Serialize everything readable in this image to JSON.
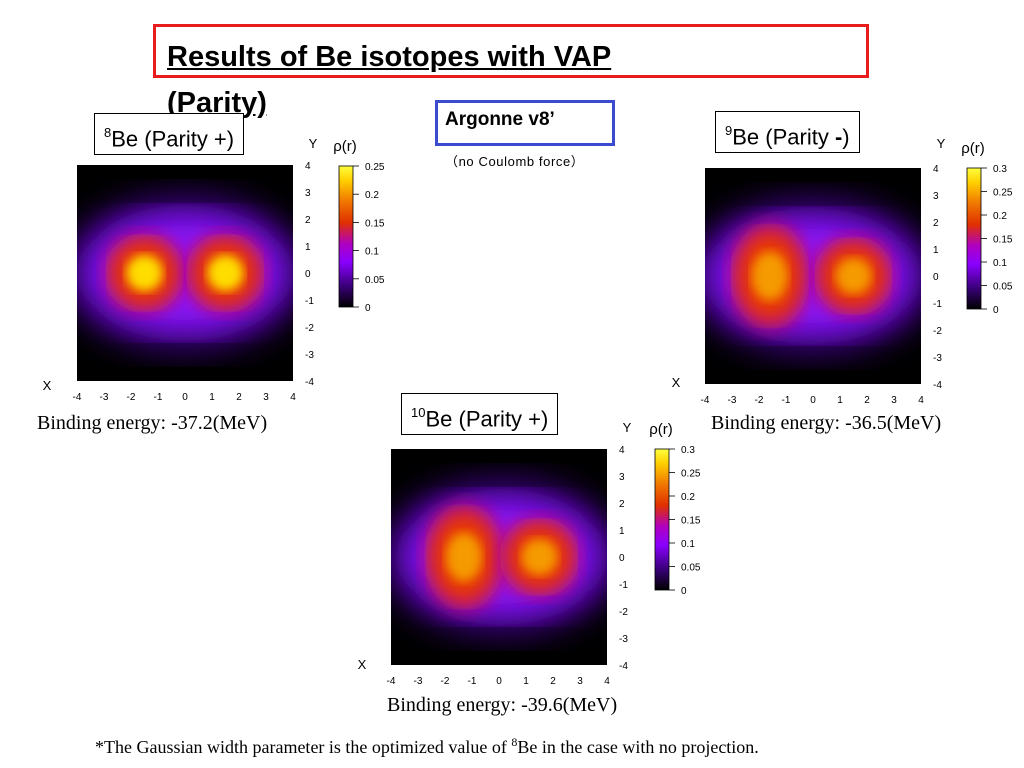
{
  "slide": {
    "title_line1": "Results of Be isotopes with VAP",
    "title_line2": "(Parity)",
    "potential": "Argonne v8’",
    "potential_note": "（no Coulomb force）",
    "footnote_before": "*The Gaussian width parameter is the optimized value of ",
    "footnote_sup": "8",
    "footnote_after": "Be in the case with no projection."
  },
  "panels": [
    {
      "mass": "8",
      "element": "Be (Parity +)",
      "parity_sign": "",
      "binding": "Binding energy: -37.2(MeV)",
      "x_axis_label": "X",
      "y_axis_label": "Y",
      "colorbar_label": "ρ(r)",
      "cb_ticks": [
        "0.25",
        "0.2",
        "0.15",
        "0.1",
        "0.05",
        "0"
      ]
    },
    {
      "mass": "9",
      "element": "Be (Parity ",
      "parity_sign": "-",
      "binding": "Binding energy: -36.5(MeV)",
      "x_axis_label": "X",
      "y_axis_label": "Y",
      "colorbar_label": "ρ(r)",
      "cb_ticks": [
        "0.3",
        "0.25",
        "0.2",
        "0.15",
        "0.1",
        "0.05",
        "0"
      ]
    },
    {
      "mass": "10",
      "element": "Be (Parity +)",
      "parity_sign": "",
      "binding": "Binding energy: -39.6(MeV)",
      "x_axis_label": "X",
      "y_axis_label": "Y",
      "colorbar_label": "ρ(r)",
      "cb_ticks": [
        "0.3",
        "0.25",
        "0.2",
        "0.15",
        "0.1",
        "0.05",
        "0"
      ]
    }
  ],
  "chart_data": [
    {
      "type": "heatmap",
      "title": "8Be (Parity +)",
      "xlabel": "X",
      "ylabel": "Y",
      "colorbar_label": "ρ(r)",
      "xlim": [
        -4,
        4
      ],
      "ylim": [
        -4,
        4
      ],
      "x_ticks": [
        "-4",
        "-3",
        "-2",
        "-1",
        "0",
        "1",
        "2",
        "3",
        "4"
      ],
      "y_ticks": [
        "4",
        "3",
        "2",
        "1",
        "0",
        "-1",
        "-2",
        "-3",
        "-4"
      ],
      "zlim": [
        0,
        0.25
      ],
      "colormap": [
        "#000000",
        "#3a007a",
        "#8a00ff",
        "#b000c0",
        "#e03000",
        "#f07800",
        "#ffd000",
        "#ffff40"
      ],
      "density_peaks": [
        {
          "x": -1.5,
          "y": 0,
          "value": 0.25
        },
        {
          "x": 1.5,
          "y": 0,
          "value": 0.25
        }
      ],
      "binding_energy_MeV": -37.2
    },
    {
      "type": "heatmap",
      "title": "9Be (Parity -)",
      "xlabel": "X",
      "ylabel": "Y",
      "colorbar_label": "ρ(r)",
      "xlim": [
        -4,
        4
      ],
      "ylim": [
        -4,
        4
      ],
      "x_ticks": [
        "-4",
        "-3",
        "-2",
        "-1",
        "0",
        "1",
        "2",
        "3",
        "4"
      ],
      "y_ticks": [
        "4",
        "3",
        "2",
        "1",
        "0",
        "-1",
        "-2",
        "-3",
        "-4"
      ],
      "zlim": [
        0,
        0.3
      ],
      "colormap": [
        "#000000",
        "#3a007a",
        "#8a00ff",
        "#b000c0",
        "#e03000",
        "#f07800",
        "#ffd000",
        "#ffff40"
      ],
      "density_peaks": [
        {
          "x": -1.6,
          "y": 0,
          "value": 0.2
        },
        {
          "x": 1.5,
          "y": 0,
          "value": 0.2
        }
      ],
      "binding_energy_MeV": -36.5
    },
    {
      "type": "heatmap",
      "title": "10Be (Parity +)",
      "xlabel": "X",
      "ylabel": "Y",
      "colorbar_label": "ρ(r)",
      "xlim": [
        -4,
        4
      ],
      "ylim": [
        -4,
        4
      ],
      "x_ticks": [
        "-4",
        "-3",
        "-2",
        "-1",
        "0",
        "1",
        "2",
        "3",
        "4"
      ],
      "y_ticks": [
        "4",
        "3",
        "2",
        "1",
        "0",
        "-1",
        "-2",
        "-3",
        "-4"
      ],
      "zlim": [
        0,
        0.3
      ],
      "colormap": [
        "#000000",
        "#3a007a",
        "#8a00ff",
        "#b000c0",
        "#e03000",
        "#f07800",
        "#ffd000",
        "#ffff40"
      ],
      "density_peaks": [
        {
          "x": -1.3,
          "y": 0,
          "value": 0.18
        },
        {
          "x": 1.5,
          "y": 0,
          "value": 0.22
        }
      ],
      "binding_energy_MeV": -39.6
    }
  ]
}
